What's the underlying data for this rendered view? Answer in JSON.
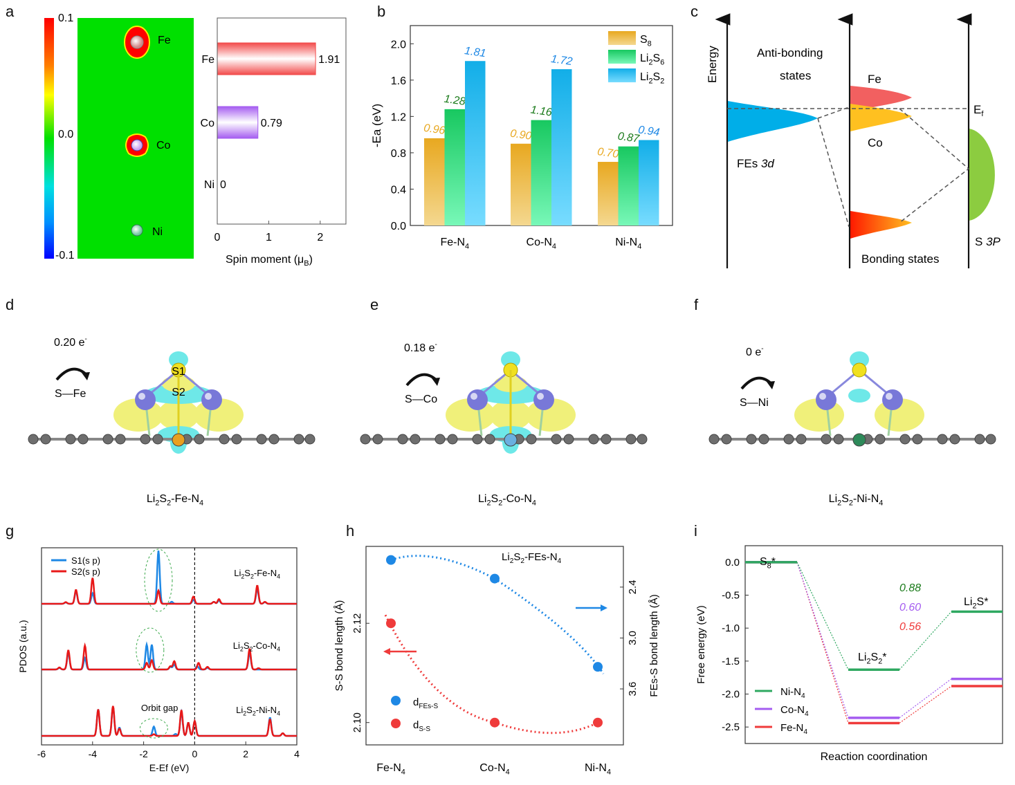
{
  "panel_labels": [
    "a",
    "b",
    "c",
    "d",
    "e",
    "f",
    "g",
    "h",
    "i"
  ],
  "chart_data": [
    {
      "id": "a",
      "type": "heatmap+bar",
      "colorbar": {
        "ticks": [
          "0.1",
          "0.0",
          "-0.1"
        ],
        "range": [
          -0.1,
          0.1
        ]
      },
      "map_atoms": [
        "Fe",
        "Co",
        "Ni"
      ],
      "bar": {
        "type": "bar",
        "orientation": "horizontal",
        "categories": [
          "Fe",
          "Co",
          "Ni"
        ],
        "values": [
          1.91,
          0.79,
          0
        ],
        "value_labels": [
          "1.91",
          "0.79",
          "0"
        ],
        "colors": [
          "#f24a4a",
          "#a45cf0",
          "#cccccc"
        ],
        "xlabel": "Spin moment (μB)",
        "xlim": [
          0,
          2.5
        ],
        "xticks": [
          "0",
          "1",
          "2"
        ]
      }
    },
    {
      "id": "b",
      "type": "bar",
      "categories": [
        "Fe-N4",
        "Co-N4",
        "Ni-N4"
      ],
      "series": [
        {
          "name": "S8",
          "values": [
            0.96,
            0.9,
            0.7
          ],
          "labels": [
            "0.96",
            "0.90",
            "0.70"
          ],
          "color": "#e8a820"
        },
        {
          "name": "Li2S6",
          "values": [
            1.28,
            1.16,
            0.87
          ],
          "labels": [
            "1.28",
            "1.16",
            "0.87"
          ],
          "color": "#1fca66",
          "label_color": "#1a7a1a"
        },
        {
          "name": "Li2S2",
          "values": [
            1.81,
            1.72,
            0.94
          ],
          "labels": [
            "1.81",
            "1.72",
            "0.94"
          ],
          "color": "#12aee8",
          "label_color": "#1e88e5"
        }
      ],
      "ylabel": "-Ea (eV)",
      "ylim": [
        0,
        2.2
      ],
      "yticks": [
        "0.0",
        "0.4",
        "0.8",
        "1.2",
        "1.6",
        "2.0"
      ],
      "legend": "top-right"
    },
    {
      "id": "c",
      "type": "diagram",
      "labels": {
        "energy": "Energy",
        "anti_bonding_1": "Anti-bonding",
        "anti_bonding_2": "states",
        "fe": "Fe",
        "co": "Co",
        "ef": "E",
        "ef_sub": "f",
        "fes": "FEs ",
        "fes_it": "3d",
        "bonding": "Bonding states",
        "s3p": "S ",
        "s3p_it": "3P"
      }
    },
    {
      "id": "g",
      "type": "line",
      "xlabel": "E-Ef (eV)",
      "ylabel": "PDOS (a.u.)",
      "xlim": [
        -6,
        4
      ],
      "xticks": [
        "-6",
        "-4",
        "-2",
        "0",
        "2",
        "4"
      ],
      "legend": "top-left",
      "series_names": [
        "S1(s p)",
        "S2(s p)"
      ],
      "series_colors": [
        "#1e88e5",
        "#e81818"
      ],
      "systems": [
        {
          "name": "Li2S2-Fe-N4",
          "peaks_s1": [
            [
              -5.05,
              0.04
            ],
            [
              -4.65,
              0.38
            ],
            [
              -4.0,
              0.32
            ],
            [
              -1.42,
              1.6
            ],
            [
              -0.9,
              0.06
            ],
            [
              -0.05,
              0.12
            ],
            [
              0.75,
              0.06
            ],
            [
              0.95,
              0.1
            ],
            [
              2.45,
              0.45
            ],
            [
              2.75,
              0.05
            ]
          ],
          "peaks_s2": [
            [
              -5.05,
              0.05
            ],
            [
              -4.65,
              0.42
            ],
            [
              -4.0,
              0.78
            ],
            [
              -1.42,
              0.4
            ],
            [
              -0.05,
              0.22
            ],
            [
              0.75,
              0.06
            ],
            [
              0.95,
              0.14
            ],
            [
              2.45,
              0.55
            ],
            [
              2.75,
              0.06
            ]
          ]
        },
        {
          "name": "Li2S2-Co-N4",
          "peaks_s1": [
            [
              -5.3,
              0.05
            ],
            [
              -4.95,
              0.5
            ],
            [
              -4.3,
              0.35
            ],
            [
              -1.88,
              0.75
            ],
            [
              -1.68,
              0.75
            ],
            [
              -0.95,
              0.08
            ],
            [
              -0.8,
              0.15
            ],
            [
              0.1,
              0.1
            ],
            [
              0.5,
              0.05
            ],
            [
              2.15,
              0.5
            ]
          ],
          "peaks_s2": [
            [
              -5.3,
              0.06
            ],
            [
              -4.95,
              0.58
            ],
            [
              -4.3,
              0.72
            ],
            [
              -1.88,
              0.2
            ],
            [
              -1.68,
              0.28
            ],
            [
              -0.95,
              0.1
            ],
            [
              -0.8,
              0.25
            ],
            [
              0.15,
              0.2
            ],
            [
              0.5,
              0.08
            ],
            [
              2.15,
              0.62
            ],
            [
              2.5,
              0.04
            ]
          ]
        },
        {
          "name": "Li2S2-Ni-N4",
          "peaks_s1": [
            [
              -3.78,
              0.8
            ],
            [
              -3.2,
              0.88
            ],
            [
              -2.95,
              0.25
            ],
            [
              -1.6,
              0.28
            ],
            [
              -0.75,
              0.06
            ],
            [
              -0.52,
              0.72
            ],
            [
              -0.25,
              0.4
            ],
            [
              0.0,
              0.45
            ],
            [
              2.95,
              0.55
            ],
            [
              3.45,
              0.08
            ]
          ],
          "peaks_s2": [
            [
              -3.78,
              0.8
            ],
            [
              -3.2,
              0.9
            ],
            [
              -2.95,
              0.22
            ],
            [
              -1.6,
              0.05
            ],
            [
              -0.52,
              0.78
            ],
            [
              -0.25,
              0.4
            ],
            [
              0.0,
              0.45
            ],
            [
              2.95,
              0.5
            ],
            [
              3.45,
              0.08
            ]
          ]
        }
      ],
      "annotations": [
        "Orbit gap"
      ]
    },
    {
      "id": "h",
      "type": "scatter",
      "title": "Li2S2-FEs-N4",
      "categories": [
        "Fe-N4",
        "Co-N4",
        "Ni-N4"
      ],
      "series": [
        {
          "name": "dFEs-S",
          "axis": "right",
          "values": [
            2.08,
            2.3,
            3.34
          ],
          "color": "#1e88e5"
        },
        {
          "name": "dS-S",
          "axis": "left",
          "values": [
            2.12,
            2.1,
            2.1
          ],
          "color": "#ef3b3b"
        }
      ],
      "ylabel_left": "S-S bond length (Å)",
      "ylabel_right": "FEs-S bond length (Å)",
      "ylim_left": [
        2.0955,
        2.1355
      ],
      "yticks_left": [
        "2.10",
        "2.12"
      ],
      "ylim_right": [
        4.26,
        1.92
      ],
      "yticks_right": [
        "2.4",
        "3.0",
        "3.6"
      ],
      "legend": "bottom-left"
    },
    {
      "id": "i",
      "type": "line",
      "xlabel": "Reaction coordination",
      "ylabel": "Free energy (eV)",
      "ylim": [
        -2.75,
        0.25
      ],
      "yticks": [
        "0.0",
        "-0.5",
        "-1.0",
        "-1.5",
        "-2.0",
        "-2.5"
      ],
      "states": [
        "S8*",
        "Li2S2*",
        "Li2S*"
      ],
      "series": [
        {
          "name": "Ni-N4",
          "values": [
            0.0,
            -1.63,
            -0.75
          ],
          "color": "#2ea860",
          "barrier": "0.88",
          "barrier_color": "#1a7a1a"
        },
        {
          "name": "Co-N4",
          "values": [
            0.0,
            -2.36,
            -1.77
          ],
          "color": "#a45cf0",
          "barrier": "0.60",
          "barrier_color": "#a45cf0"
        },
        {
          "name": "Fe-N4",
          "values": [
            0.0,
            -2.44,
            -1.88
          ],
          "color": "#ef3b3b",
          "barrier": "0.56",
          "barrier_color": "#ef3b3b"
        }
      ],
      "legend": "bottom-left"
    }
  ],
  "structures": [
    {
      "id": "d",
      "charge": "0.20 e",
      "bond": "S—Fe",
      "caption_parts": [
        "Li",
        "2",
        "S",
        "2",
        "-Fe-N",
        "4"
      ],
      "labels": [
        "S1",
        "S2"
      ],
      "center_color": "#e8a020"
    },
    {
      "id": "e",
      "charge": "0.18 e",
      "bond": "S—Co",
      "caption_parts": [
        "Li",
        "2",
        "S",
        "2",
        "-Co-N",
        "4"
      ],
      "labels": [],
      "center_color": "#6ab0e0"
    },
    {
      "id": "f",
      "charge": "0 e",
      "bond": "S—Ni",
      "caption_parts": [
        "Li",
        "2",
        "S",
        "2",
        "-Ni-N",
        "4"
      ],
      "labels": [],
      "center_color": "#2e8a5a"
    }
  ]
}
